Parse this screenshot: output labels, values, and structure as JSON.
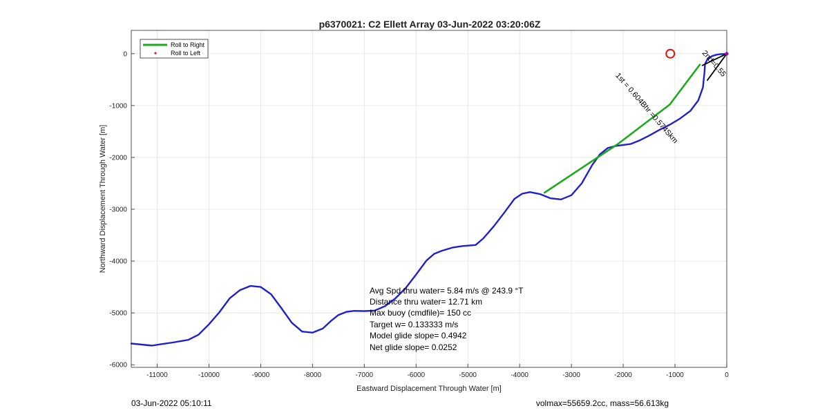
{
  "chart_data": {
    "type": "line",
    "title": "p6370021: C2 Ellett Array 03-Jun-2022 03:20:06Z",
    "xlabel": "Eastward Displacement Through Water [m]",
    "ylabel": "Northward Displacement Through Water [m]",
    "xlim": [
      -11500,
      0
    ],
    "ylim": [
      -6050,
      450
    ],
    "xticks": [
      -11000,
      -10000,
      -9000,
      -8000,
      -7000,
      -6000,
      -5000,
      -4000,
      -3000,
      -2000,
      -1000,
      0
    ],
    "yticks": [
      0,
      -1000,
      -2000,
      -3000,
      -4000,
      -5000,
      -6000
    ],
    "grid": true,
    "legend": {
      "placement": "top-left",
      "entries": [
        {
          "label": "Roll to Right",
          "color": "#1aaa1a",
          "style": "line"
        },
        {
          "label": "Roll to Left",
          "color": "#e02020",
          "style": "dot"
        }
      ]
    },
    "series": [
      {
        "color": "#1f1fcc",
        "x": [
          -11500,
          -11300,
          -11100,
          -10900,
          -10700,
          -10400,
          -10200,
          -10000,
          -9800,
          -9600,
          -9400,
          -9200,
          -9000,
          -8800,
          -8600,
          -8400,
          -8200,
          -8000,
          -7800,
          -7650,
          -7500,
          -7350,
          -7200,
          -7000,
          -6800,
          -6600,
          -6400,
          -6200,
          -6000,
          -5800,
          -5650,
          -5500,
          -5300,
          -5100,
          -4850,
          -4700,
          -4500,
          -4300,
          -4100,
          -3950,
          -3800,
          -3600,
          -3400,
          -3200,
          -3000,
          -2800,
          -2600,
          -2450,
          -2300,
          -2150,
          -2000,
          -1850,
          -1700,
          -1500,
          -1300,
          -1100,
          -900,
          -700,
          -550,
          -460,
          -430,
          -420,
          -380,
          -330,
          -270,
          -200,
          -130,
          -60,
          -20,
          -5,
          0
        ],
        "y": [
          -5590,
          -5610,
          -5630,
          -5600,
          -5570,
          -5520,
          -5420,
          -5220,
          -4990,
          -4720,
          -4560,
          -4480,
          -4500,
          -4640,
          -4910,
          -5190,
          -5360,
          -5380,
          -5300,
          -5160,
          -5040,
          -4980,
          -4960,
          -4965,
          -4955,
          -4870,
          -4720,
          -4520,
          -4260,
          -3990,
          -3860,
          -3800,
          -3740,
          -3710,
          -3690,
          -3560,
          -3330,
          -3070,
          -2800,
          -2700,
          -2670,
          -2710,
          -2790,
          -2810,
          -2730,
          -2500,
          -2150,
          -1940,
          -1820,
          -1780,
          -1760,
          -1740,
          -1680,
          -1580,
          -1470,
          -1370,
          -1250,
          -1100,
          -900,
          -650,
          -350,
          -200,
          -120,
          -70,
          -40,
          -20,
          -10,
          -5,
          -2,
          0,
          0
        ]
      },
      {
        "color": "#1aaa1a",
        "x": [
          -3520,
          -2100,
          -1100,
          -520
        ],
        "y": [
          -2680,
          -1740,
          -980,
          -210
        ]
      }
    ],
    "markers": [
      {
        "type": "circle",
        "color": "#dd1111",
        "x": -1090,
        "y": 0
      },
      {
        "type": "point",
        "color": "#cc00cc",
        "x": 0,
        "y": 0
      }
    ],
    "arrows": [
      {
        "color": "#000000",
        "x": [
          -380,
          0
        ],
        "y": [
          -520,
          0
        ]
      },
      {
        "color": "#000000",
        "x": [
          -480,
          0
        ],
        "y": [
          -230,
          0
        ]
      }
    ],
    "annotations": [
      {
        "text": "1st = 0.604Bhr =0.574Skm",
        "x": -1580,
        "y": -1080,
        "rotation": 49
      },
      {
        "text": "2nd=0.55",
        "x": -280,
        "y": -220,
        "rotation": 49
      }
    ],
    "stats": [
      "Avg Spd thru water=  5.84 m/s @ 243.9 °T",
      "Distance thru water= 12.71 km",
      "Max buoy (cmdfile)= 150 cc",
      "Target w= 0.133333 m/s",
      "Model glide slope= 0.4942",
      "Net glide slope= 0.0252"
    ],
    "footer_left": "03-Jun-2022 05:10:11",
    "footer_right": "volmax=55659.2cc, mass=56.613kg"
  }
}
